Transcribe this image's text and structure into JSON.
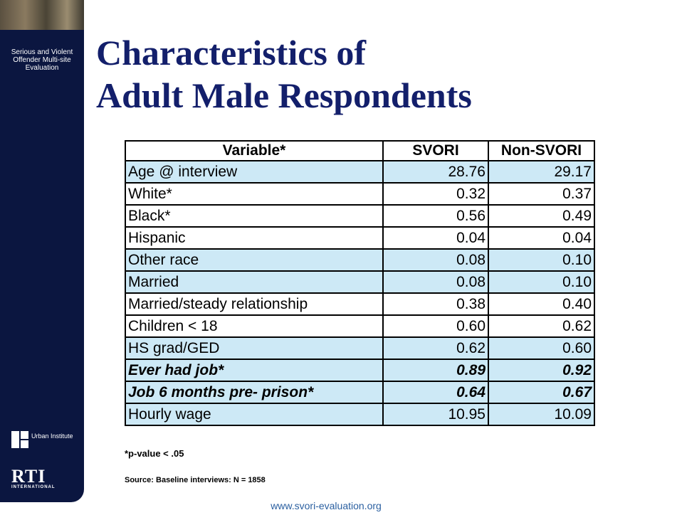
{
  "sidebar": {
    "program": "Serious and Violent Offender Multi-site Evaluation",
    "logos": [
      "Urban Institute",
      "RTI"
    ],
    "logo_subtitle": "INTERNATIONAL"
  },
  "title": [
    "Characteristics of",
    "Adult Male Respondents"
  ],
  "table": {
    "header": [
      "Variable*",
      "SVORI",
      "Non-SVORI"
    ],
    "rows": [
      {
        "cells": [
          "Age @ interview",
          "28.76",
          "29.17"
        ],
        "shaded": true,
        "emphasis": false
      },
      {
        "cells": [
          "White*",
          "0.32",
          "0.37"
        ],
        "shaded": false,
        "emphasis": false
      },
      {
        "cells": [
          "Black*",
          "0.56",
          "0.49"
        ],
        "shaded": false,
        "emphasis": false
      },
      {
        "cells": [
          "Hispanic",
          "0.04",
          "0.04"
        ],
        "shaded": false,
        "emphasis": false
      },
      {
        "cells": [
          "Other race",
          "0.08",
          "0.10"
        ],
        "shaded": true,
        "emphasis": false
      },
      {
        "cells": [
          "Married",
          "0.08",
          "0.10"
        ],
        "shaded": true,
        "emphasis": false
      },
      {
        "cells": [
          "Married/steady relationship",
          "0.38",
          "0.40"
        ],
        "shaded": false,
        "emphasis": false
      },
      {
        "cells": [
          "Children < 18",
          "0.60",
          "0.62"
        ],
        "shaded": false,
        "emphasis": false
      },
      {
        "cells": [
          "HS grad/GED",
          "0.62",
          "0.60"
        ],
        "shaded": true,
        "emphasis": false
      },
      {
        "cells": [
          "Ever had job*",
          "0.89",
          "0.92"
        ],
        "shaded": true,
        "emphasis": true
      },
      {
        "cells": [
          "Job 6 months pre- prison*",
          "0.64",
          "0.67"
        ],
        "shaded": true,
        "emphasis": true
      },
      {
        "cells": [
          "Hourly wage",
          "10.95",
          "10.09"
        ],
        "shaded": true,
        "emphasis": false
      }
    ]
  },
  "footnote": "*p-value < .05",
  "source": "Source: Baseline interviews: N = 1858",
  "url": "www.svori-evaluation.org"
}
